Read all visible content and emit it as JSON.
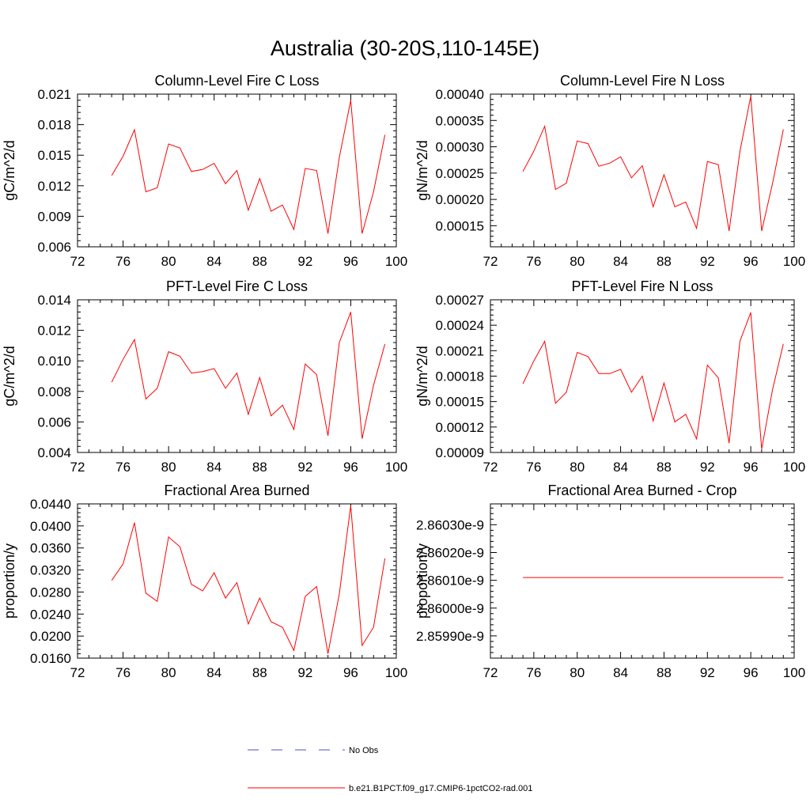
{
  "figure": {
    "title": "Australia (30-20S,110-145E)"
  },
  "legend": {
    "entries": [
      {
        "label": "No Obs",
        "color": "#4d4dcc",
        "style": "dashed"
      },
      {
        "label": "b.e21.B1PCT.f09_g17.CMIP6-1pctCO2-rad.001",
        "color": "#ff0000",
        "style": "solid"
      }
    ]
  },
  "chart_data": [
    {
      "type": "line",
      "title": "Column-Level Fire C Loss",
      "ylabel": "gC/m^2/d",
      "xlim": [
        72,
        100
      ],
      "ylim": [
        0.006,
        0.021
      ],
      "xticks": [
        72,
        76,
        80,
        84,
        88,
        92,
        96,
        100
      ],
      "xtick_labels": [
        "72",
        "76",
        "80",
        "84",
        "88",
        "92",
        "96",
        "100"
      ],
      "yticks": [
        0.006,
        0.009,
        0.012,
        0.015,
        0.018,
        0.021
      ],
      "ytick_labels": [
        "0.006",
        "0.009",
        "0.012",
        "0.015",
        "0.018",
        "0.021"
      ],
      "series": [
        {
          "color": "#ff0000",
          "x": [
            75,
            76,
            77,
            78,
            79,
            80,
            81,
            82,
            83,
            84,
            85,
            86,
            87,
            88,
            89,
            90,
            91,
            92,
            93,
            94,
            95,
            96,
            97,
            98,
            99
          ],
          "y": [
            0.013,
            0.0149,
            0.0175,
            0.0114,
            0.0118,
            0.0161,
            0.0157,
            0.0134,
            0.0136,
            0.0142,
            0.0122,
            0.0135,
            0.0096,
            0.0127,
            0.0095,
            0.0101,
            0.0077,
            0.0137,
            0.0135,
            0.0073,
            0.0148,
            0.0204,
            0.0073,
            0.0114,
            0.017
          ]
        }
      ]
    },
    {
      "type": "line",
      "title": "Column-Level Fire N Loss",
      "ylabel": "gN/m^2/d",
      "xlim": [
        72,
        100
      ],
      "ylim": [
        0.00011,
        0.0004
      ],
      "xticks": [
        72,
        76,
        80,
        84,
        88,
        92,
        96,
        100
      ],
      "xtick_labels": [
        "72",
        "76",
        "80",
        "84",
        "88",
        "92",
        "96",
        "100"
      ],
      "yticks": [
        0.00015,
        0.0002,
        0.00025,
        0.0003,
        0.00035,
        0.0004
      ],
      "ytick_labels": [
        "0.00015",
        "0.00020",
        "0.00025",
        "0.00030",
        "0.00035",
        "0.00040"
      ],
      "series": [
        {
          "color": "#ff0000",
          "x": [
            75,
            76,
            77,
            78,
            79,
            80,
            81,
            82,
            83,
            84,
            85,
            86,
            87,
            88,
            89,
            90,
            91,
            92,
            93,
            94,
            95,
            96,
            97,
            98,
            99
          ],
          "y": [
            0.000253,
            0.000292,
            0.000339,
            0.000219,
            0.000231,
            0.000311,
            0.000306,
            0.000263,
            0.000269,
            0.000281,
            0.000241,
            0.000264,
            0.000186,
            0.000247,
            0.000186,
            0.000195,
            0.000145,
            0.000272,
            0.000266,
            0.00014,
            0.000291,
            0.000396,
            0.00014,
            0.00023,
            0.000333
          ]
        }
      ]
    },
    {
      "type": "line",
      "title": "PFT-Level Fire C Loss",
      "ylabel": "gC/m^2/d",
      "xlim": [
        72,
        100
      ],
      "ylim": [
        0.004,
        0.014
      ],
      "xticks": [
        72,
        76,
        80,
        84,
        88,
        92,
        96,
        100
      ],
      "xtick_labels": [
        "72",
        "76",
        "80",
        "84",
        "88",
        "92",
        "96",
        "100"
      ],
      "yticks": [
        0.004,
        0.006,
        0.008,
        0.01,
        0.012,
        0.014
      ],
      "ytick_labels": [
        "0.004",
        "0.006",
        "0.008",
        "0.010",
        "0.012",
        "0.014"
      ],
      "series": [
        {
          "color": "#ff0000",
          "x": [
            75,
            76,
            77,
            78,
            79,
            80,
            81,
            82,
            83,
            84,
            85,
            86,
            87,
            88,
            89,
            90,
            91,
            92,
            93,
            94,
            95,
            96,
            97,
            98,
            99
          ],
          "y": [
            0.0086,
            0.0101,
            0.0114,
            0.0075,
            0.0082,
            0.0106,
            0.0103,
            0.0092,
            0.0093,
            0.0095,
            0.0082,
            0.0092,
            0.0065,
            0.0089,
            0.0064,
            0.0071,
            0.0055,
            0.0098,
            0.0091,
            0.0051,
            0.0112,
            0.0132,
            0.0049,
            0.0084,
            0.0111
          ]
        }
      ]
    },
    {
      "type": "line",
      "title": "PFT-Level Fire N Loss",
      "ylabel": "gN/m^2/d",
      "xlim": [
        72,
        100
      ],
      "ylim": [
        9e-05,
        0.00027
      ],
      "xticks": [
        72,
        76,
        80,
        84,
        88,
        92,
        96,
        100
      ],
      "xtick_labels": [
        "72",
        "76",
        "80",
        "84",
        "88",
        "92",
        "96",
        "100"
      ],
      "yticks": [
        9e-05,
        0.00012,
        0.00015,
        0.00018,
        0.00021,
        0.00024,
        0.00027
      ],
      "ytick_labels": [
        "0.00009",
        "0.00012",
        "0.00015",
        "0.00018",
        "0.00021",
        "0.00024",
        "0.00027"
      ],
      "series": [
        {
          "color": "#ff0000",
          "x": [
            75,
            76,
            77,
            78,
            79,
            80,
            81,
            82,
            83,
            84,
            85,
            86,
            87,
            88,
            89,
            90,
            91,
            92,
            93,
            94,
            95,
            96,
            97,
            98,
            99
          ],
          "y": [
            0.000171,
            0.000198,
            0.000221,
            0.000148,
            0.000161,
            0.000208,
            0.000203,
            0.000183,
            0.000183,
            0.000188,
            0.000161,
            0.00018,
            0.000127,
            0.000172,
            0.000126,
            0.000135,
            0.000106,
            0.000193,
            0.000178,
            0.000101,
            0.000221,
            0.000255,
            9.4e-05,
            0.000164,
            0.000218
          ]
        }
      ]
    },
    {
      "type": "line",
      "title": "Fractional Area Burned",
      "ylabel": "proportion/y",
      "xlim": [
        72,
        100
      ],
      "ylim": [
        0.016,
        0.044
      ],
      "xticks": [
        72,
        76,
        80,
        84,
        88,
        92,
        96,
        100
      ],
      "xtick_labels": [
        "72",
        "76",
        "80",
        "84",
        "88",
        "92",
        "96",
        "100"
      ],
      "yticks": [
        0.016,
        0.02,
        0.024,
        0.028,
        0.032,
        0.036,
        0.04,
        0.044
      ],
      "ytick_labels": [
        "0.0160",
        "0.0200",
        "0.0240",
        "0.0280",
        "0.0320",
        "0.0360",
        "0.0400",
        "0.0440"
      ],
      "series": [
        {
          "color": "#ff0000",
          "x": [
            75,
            76,
            77,
            78,
            79,
            80,
            81,
            82,
            83,
            84,
            85,
            86,
            87,
            88,
            89,
            90,
            91,
            92,
            93,
            94,
            95,
            96,
            97,
            98,
            99
          ],
          "y": [
            0.0301,
            0.0331,
            0.0406,
            0.0278,
            0.0263,
            0.038,
            0.0362,
            0.0294,
            0.0282,
            0.0315,
            0.0269,
            0.0297,
            0.0222,
            0.0269,
            0.0226,
            0.0216,
            0.0174,
            0.0272,
            0.029,
            0.0168,
            0.0277,
            0.0437,
            0.0183,
            0.0216,
            0.0341
          ]
        }
      ]
    },
    {
      "type": "line",
      "title": "Fractional Area Burned - Crop",
      "ylabel": "proportion/y",
      "xlim": [
        72,
        100
      ],
      "ylim": [
        2.85982e-09,
        2.860375e-09
      ],
      "xticks": [
        72,
        76,
        80,
        84,
        88,
        92,
        96,
        100
      ],
      "xtick_labels": [
        "72",
        "76",
        "80",
        "84",
        "88",
        "92",
        "96",
        "100"
      ],
      "yticks": [
        2.8599e-09,
        2.86e-09,
        2.8601e-09,
        2.8602e-09,
        2.8603e-09
      ],
      "ytick_labels": [
        "2.85990e-9",
        "2.86000e-9",
        "2.86010e-9",
        "2.86020e-9",
        "2.86030e-9"
      ],
      "series": [
        {
          "color": "#ff0000",
          "x": [
            75,
            99
          ],
          "y": [
            2.86011e-09,
            2.86011e-09
          ]
        }
      ]
    }
  ]
}
